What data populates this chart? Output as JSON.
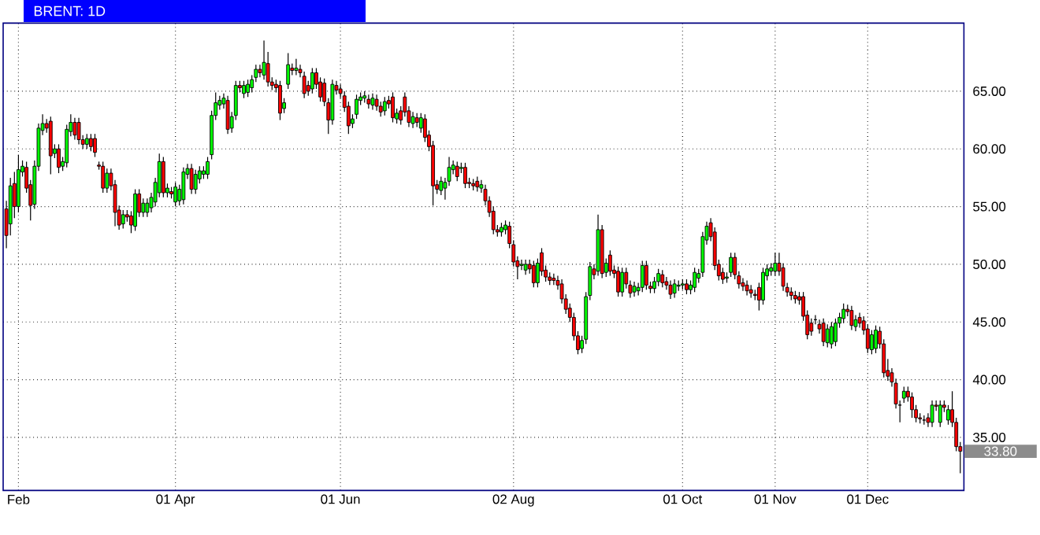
{
  "chart_data": {
    "type": "candlestick",
    "title": "BRENT: 1D",
    "categories": [
      null,
      null,
      null,
      "Feb",
      null,
      null,
      null,
      null,
      null,
      null,
      null,
      null,
      null,
      null,
      null,
      null,
      null,
      null,
      null,
      null,
      null,
      null,
      null,
      null,
      null,
      null,
      null,
      null,
      null,
      null,
      null,
      null,
      null,
      null,
      null,
      null,
      null,
      null,
      null,
      null,
      null,
      null,
      "01 Apr",
      null,
      null,
      null,
      null,
      null,
      null,
      null,
      null,
      null,
      null,
      null,
      null,
      null,
      null,
      null,
      null,
      null,
      null,
      null,
      null,
      null,
      null,
      null,
      null,
      null,
      null,
      null,
      null,
      null,
      null,
      null,
      null,
      null,
      null,
      null,
      null,
      null,
      null,
      null,
      null,
      "01 Jun",
      null,
      null,
      null,
      null,
      null,
      null,
      null,
      null,
      null,
      null,
      null,
      null,
      null,
      null,
      null,
      null,
      null,
      null,
      null,
      null,
      null,
      null,
      null,
      null,
      null,
      null,
      null,
      null,
      null,
      null,
      null,
      null,
      null,
      null,
      null,
      null,
      null,
      null,
      null,
      null,
      null,
      null,
      "02 Aug",
      null,
      null,
      null,
      null,
      null,
      null,
      null,
      null,
      null,
      null,
      null,
      null,
      null,
      null,
      null,
      null,
      null,
      null,
      null,
      null,
      null,
      null,
      null,
      null,
      null,
      null,
      null,
      null,
      null,
      null,
      null,
      null,
      null,
      null,
      null,
      null,
      null,
      null,
      null,
      null,
      null,
      "01 Oct",
      null,
      null,
      null,
      null,
      null,
      null,
      null,
      null,
      null,
      null,
      null,
      null,
      null,
      null,
      null,
      null,
      null,
      null,
      null,
      null,
      null,
      null,
      "01 Nov",
      null,
      null,
      null,
      null,
      null,
      null,
      null,
      null,
      null,
      null,
      null,
      null,
      null,
      null,
      null,
      null,
      null,
      null,
      null,
      null,
      null,
      null,
      "01 Dec",
      null,
      null,
      null,
      null,
      null,
      null,
      null,
      null,
      null,
      null,
      null,
      null,
      null,
      null,
      null,
      null,
      null,
      null,
      null,
      null,
      null,
      null,
      null
    ],
    "ohlc": [
      [
        54.8,
        55.5,
        51.4,
        52.5
      ],
      [
        53.5,
        57.5,
        52.5,
        56.8
      ],
      [
        57,
        58,
        54,
        55
      ],
      [
        55,
        59.5,
        54.5,
        58.2
      ],
      [
        58,
        59,
        57.6,
        58.5
      ],
      [
        58.4,
        58.9,
        56.2,
        56.6
      ],
      [
        56.9,
        57.3,
        53.8,
        55.1
      ],
      [
        55.2,
        59,
        54.8,
        58.5
      ],
      [
        58.5,
        62.2,
        58.1,
        61.8
      ],
      [
        61.6,
        63,
        61.2,
        62.2
      ],
      [
        62.2,
        62.6,
        61.4,
        61.8
      ],
      [
        62.4,
        62.8,
        57.8,
        59.4
      ],
      [
        59.6,
        60.4,
        59.2,
        60
      ],
      [
        60,
        60.4,
        57.9,
        58.4
      ],
      [
        58.5,
        59.3,
        58.1,
        58.9
      ],
      [
        58.8,
        62.1,
        58.4,
        61.7
      ],
      [
        61.5,
        63,
        61.1,
        62.3
      ],
      [
        62.3,
        62.7,
        60.8,
        61.2
      ],
      [
        62.3,
        62.7,
        60.4,
        60.8
      ],
      [
        60.8,
        61.2,
        60,
        60.4
      ],
      [
        60.4,
        61.3,
        60,
        60.9
      ],
      [
        60.9,
        61.3,
        59.8,
        60.2
      ],
      [
        60.9,
        61.3,
        59.3,
        59.7
      ],
      [
        58.6,
        58.9,
        58.2,
        58.5
      ],
      [
        58.5,
        58.9,
        56.2,
        56.6
      ],
      [
        56.6,
        58.3,
        56.2,
        57.9
      ],
      [
        57.9,
        58.3,
        56.4,
        56.8
      ],
      [
        56.9,
        57.3,
        53.3,
        54.5
      ],
      [
        54.7,
        55.1,
        53,
        53.4
      ],
      [
        53.5,
        54.7,
        53.1,
        54.3
      ],
      [
        54.3,
        54.7,
        53.7,
        54.1
      ],
      [
        54.2,
        54.6,
        52.7,
        53.4
      ],
      [
        53.3,
        56.5,
        52.9,
        56.1
      ],
      [
        56.1,
        56.5,
        54.1,
        54.5
      ],
      [
        54.5,
        55.7,
        54.1,
        55.3
      ],
      [
        54.5,
        55.7,
        54.1,
        55.3
      ],
      [
        54.9,
        56.2,
        54.5,
        55.8
      ],
      [
        55.4,
        57.5,
        55,
        57.1
      ],
      [
        56.2,
        59.6,
        55.8,
        58.9
      ],
      [
        58.9,
        59.3,
        55.8,
        56.2
      ],
      [
        56.2,
        57,
        55.8,
        56.6
      ],
      [
        56.3,
        56.7,
        55.7,
        56.1
      ],
      [
        55.4,
        57.1,
        55,
        56.7
      ],
      [
        55.5,
        56.9,
        55.1,
        56.5
      ],
      [
        55.6,
        58.4,
        55.2,
        58
      ],
      [
        57.8,
        58.7,
        57.4,
        58.3
      ],
      [
        58.3,
        58.7,
        56.1,
        56.5
      ],
      [
        56.5,
        58.2,
        56.1,
        57.8
      ],
      [
        57.4,
        58.5,
        57,
        58.1
      ],
      [
        57.8,
        58.5,
        57.4,
        58.1
      ],
      [
        57.8,
        59.3,
        57.4,
        58.9
      ],
      [
        59.5,
        63.3,
        59.1,
        62.9
      ],
      [
        62.9,
        64.9,
        62.5,
        64
      ],
      [
        63.8,
        64.6,
        63.4,
        64.2
      ],
      [
        63.9,
        64.8,
        63.5,
        64.4
      ],
      [
        64.2,
        64.6,
        61.3,
        61.7
      ],
      [
        61.8,
        63.2,
        61.4,
        62.8
      ],
      [
        62.9,
        65.9,
        62.5,
        65.5
      ],
      [
        65.5,
        65.9,
        64.9,
        65.3
      ],
      [
        64.8,
        65.9,
        64.4,
        65.5
      ],
      [
        64.9,
        66,
        64.5,
        65.6
      ],
      [
        65.3,
        66.4,
        64.9,
        66
      ],
      [
        66.2,
        67.3,
        65.8,
        66.9
      ],
      [
        66.9,
        67.3,
        66.2,
        66.6
      ],
      [
        66.4,
        69.4,
        66,
        67.5
      ],
      [
        67.4,
        68.4,
        65.4,
        65.8
      ],
      [
        65.8,
        66.2,
        65.1,
        65.5
      ],
      [
        65.6,
        66,
        64.9,
        65.3
      ],
      [
        65.5,
        65.9,
        62.5,
        63.1
      ],
      [
        63.5,
        64.4,
        63.1,
        64
      ],
      [
        65.6,
        68.3,
        65.2,
        67.3
      ],
      [
        67,
        67.4,
        66.4,
        66.8
      ],
      [
        66.8,
        67.8,
        66.4,
        67
      ],
      [
        66.9,
        67.3,
        66.2,
        66.6
      ],
      [
        66.3,
        66.7,
        64.4,
        64.8
      ],
      [
        65.5,
        65.9,
        64.6,
        65
      ],
      [
        65.2,
        67,
        64.8,
        66.6
      ],
      [
        66.6,
        67,
        65.2,
        65.6
      ],
      [
        65.8,
        66.2,
        64.1,
        64.5
      ],
      [
        65.7,
        66.1,
        63.7,
        64.1
      ],
      [
        64,
        64.4,
        61.3,
        62.5
      ],
      [
        62.5,
        66,
        62.1,
        65.6
      ],
      [
        65.5,
        65.9,
        64.7,
        65.1
      ],
      [
        65.2,
        65.6,
        64.4,
        64.8
      ],
      [
        64.6,
        65,
        63.2,
        63.6
      ],
      [
        63.7,
        64.1,
        61.3,
        62
      ],
      [
        62.2,
        63,
        61.8,
        62.6
      ],
      [
        63,
        64.7,
        62.6,
        64.3
      ],
      [
        64.2,
        64.9,
        63.8,
        64.5
      ],
      [
        64.4,
        65,
        64,
        64.6
      ],
      [
        64.3,
        64.7,
        63.5,
        63.9
      ],
      [
        63.8,
        64.8,
        63.4,
        64.4
      ],
      [
        64.3,
        64.7,
        63.3,
        63.7
      ],
      [
        63.7,
        64.1,
        62.8,
        63.2
      ],
      [
        63.3,
        64.5,
        62.9,
        64.1
      ],
      [
        64.2,
        64.6,
        63.5,
        63.9
      ],
      [
        64.5,
        64.9,
        62.3,
        62.7
      ],
      [
        62.6,
        63.5,
        62.2,
        63.1
      ],
      [
        63.3,
        63.7,
        62.1,
        62.5
      ],
      [
        64.5,
        64.9,
        62.8,
        63.2
      ],
      [
        63.3,
        63.7,
        61.9,
        62.3
      ],
      [
        62.2,
        63.2,
        61.8,
        62.8
      ],
      [
        62.7,
        63.1,
        61.9,
        62.3
      ],
      [
        61.8,
        63.1,
        61.4,
        62.7
      ],
      [
        62.6,
        63,
        60.6,
        61
      ],
      [
        61.2,
        61.6,
        59.8,
        60.2
      ],
      [
        60.3,
        60.7,
        55.1,
        56.8
      ],
      [
        56.9,
        57.3,
        56.1,
        56.5
      ],
      [
        56.4,
        57.6,
        56,
        57.2
      ],
      [
        56.6,
        57.5,
        55.6,
        57.1
      ],
      [
        57.2,
        59.3,
        56.8,
        58.4
      ],
      [
        58.2,
        59,
        57.8,
        58.6
      ],
      [
        58.5,
        58.9,
        57.2,
        57.6
      ],
      [
        58.3,
        58.8,
        57.9,
        58.4
      ],
      [
        58.4,
        58.8,
        56.6,
        57
      ],
      [
        57.1,
        57.5,
        56.6,
        57
      ],
      [
        57,
        57.4,
        56.4,
        56.8
      ],
      [
        57.2,
        57.6,
        56.3,
        56.7
      ],
      [
        56.6,
        57.3,
        56.2,
        56.9
      ],
      [
        56.5,
        56.9,
        55.1,
        55.5
      ],
      [
        55.5,
        55.9,
        54.1,
        54.5
      ],
      [
        54.6,
        55,
        52.6,
        53
      ],
      [
        53,
        53.4,
        52.4,
        52.8
      ],
      [
        52.8,
        53.6,
        52.4,
        53.2
      ],
      [
        53,
        53.8,
        52.6,
        53.4
      ],
      [
        53.3,
        53.7,
        51.4,
        51.8
      ],
      [
        51.7,
        52.1,
        49.8,
        50.2
      ],
      [
        50.3,
        50.7,
        48.7,
        49.8
      ],
      [
        49.9,
        50.4,
        49.5,
        50
      ],
      [
        49.5,
        50.4,
        49.1,
        50
      ],
      [
        50,
        50.4,
        49.2,
        49.6
      ],
      [
        49.9,
        50.3,
        48,
        48.4
      ],
      [
        48.4,
        50.5,
        48,
        50.1
      ],
      [
        51,
        51.4,
        49,
        49.4
      ],
      [
        49.5,
        49.9,
        48.5,
        48.9
      ],
      [
        48.9,
        49.3,
        48.2,
        48.6
      ],
      [
        48.8,
        49.2,
        48.2,
        48.6
      ],
      [
        48.6,
        49,
        47.8,
        48.2
      ],
      [
        48.3,
        48.7,
        46.6,
        47
      ],
      [
        47,
        47.4,
        45.7,
        46.1
      ],
      [
        46.2,
        46.6,
        45,
        45.4
      ],
      [
        45.4,
        45.8,
        43.4,
        43.8
      ],
      [
        43.8,
        44.2,
        42.2,
        42.6
      ],
      [
        42.7,
        43.8,
        42.3,
        43.4
      ],
      [
        43.5,
        47.6,
        43.1,
        47.2
      ],
      [
        47.3,
        50.2,
        46.9,
        49.8
      ],
      [
        49.6,
        50,
        48.7,
        49.1
      ],
      [
        49.4,
        54.3,
        49,
        53
      ],
      [
        53,
        53.4,
        48.8,
        49.2
      ],
      [
        49.3,
        50.5,
        48.9,
        50.1
      ],
      [
        50.8,
        51.2,
        49,
        49.4
      ],
      [
        49.5,
        49.9,
        48.8,
        49.2
      ],
      [
        49.4,
        49.8,
        47.2,
        47.6
      ],
      [
        47.6,
        49.7,
        47.2,
        49.3
      ],
      [
        49.3,
        49.7,
        47.9,
        48.3
      ],
      [
        48.2,
        48.6,
        47.1,
        47.5
      ],
      [
        47.6,
        48.5,
        47.2,
        48.1
      ],
      [
        47.7,
        48.4,
        47.3,
        48
      ],
      [
        48,
        50.3,
        47.6,
        49.9
      ],
      [
        49.9,
        50.3,
        47.8,
        48.2
      ],
      [
        48.1,
        48.5,
        47.5,
        47.9
      ],
      [
        47.9,
        48.9,
        47.5,
        48.5
      ],
      [
        48.5,
        49.6,
        48.1,
        49.2
      ],
      [
        49.1,
        49.5,
        48,
        48.4
      ],
      [
        48.5,
        48.9,
        47.8,
        48.2
      ],
      [
        48.2,
        48.6,
        47,
        47.4
      ],
      [
        47.5,
        48.7,
        47.1,
        48.3
      ],
      [
        48.1,
        48.6,
        47.7,
        48.2
      ],
      [
        48.2,
        48.7,
        47.8,
        48.3
      ],
      [
        48.3,
        48.7,
        47.4,
        47.8
      ],
      [
        47.8,
        48.6,
        47.4,
        48.2
      ],
      [
        48,
        49.7,
        47.6,
        49.3
      ],
      [
        48.8,
        49.6,
        48.4,
        49.2
      ],
      [
        49.3,
        52.8,
        48.9,
        52.4
      ],
      [
        52.1,
        53.7,
        51.7,
        53.3
      ],
      [
        53.6,
        54,
        52,
        52.4
      ],
      [
        52.8,
        53.2,
        49.5,
        49.9
      ],
      [
        50,
        50.4,
        48.6,
        49
      ],
      [
        49.3,
        49.7,
        48.3,
        48.7
      ],
      [
        48.8,
        49.3,
        48.4,
        48.9
      ],
      [
        49.3,
        51,
        48.9,
        50.6
      ],
      [
        50.6,
        51,
        48.7,
        49.1
      ],
      [
        49,
        49.4,
        47.9,
        48.3
      ],
      [
        48.4,
        48.8,
        47.7,
        48.1
      ],
      [
        48.2,
        48.6,
        47.3,
        47.7
      ],
      [
        47.8,
        48.2,
        47.1,
        47.5
      ],
      [
        47.4,
        47.8,
        46.9,
        47.3
      ],
      [
        48,
        48.4,
        46,
        46.9
      ],
      [
        46.9,
        49.7,
        46.5,
        49.3
      ],
      [
        49,
        50,
        48.6,
        49.6
      ],
      [
        49.4,
        50.1,
        49,
        49.7
      ],
      [
        49.4,
        51,
        49,
        50.1
      ],
      [
        50.1,
        51,
        49,
        49.4
      ],
      [
        49.7,
        50.1,
        47.7,
        48.1
      ],
      [
        48,
        48.4,
        47.2,
        47.6
      ],
      [
        47.6,
        48,
        46.9,
        47.3
      ],
      [
        47.3,
        47.7,
        46.6,
        47
      ],
      [
        47.2,
        47.6,
        46.5,
        46.9
      ],
      [
        47.2,
        47.6,
        45.1,
        45.5
      ],
      [
        45.6,
        46,
        43.5,
        43.9
      ],
      [
        44.9,
        45.3,
        43.8,
        44.2
      ],
      [
        45.2,
        45.6,
        44.8,
        45.2
      ],
      [
        44.8,
        45.2,
        44,
        44.4
      ],
      [
        44.9,
        45.3,
        42.9,
        43.3
      ],
      [
        43.2,
        44.8,
        42.8,
        44.4
      ],
      [
        43.1,
        45,
        42.7,
        44.6
      ],
      [
        43.3,
        45.3,
        42.9,
        44.9
      ],
      [
        44.9,
        45.8,
        44.5,
        45.4
      ],
      [
        45.3,
        46.6,
        44.9,
        46.1
      ],
      [
        46.1,
        46.5,
        45.5,
        45.9
      ],
      [
        46,
        46.4,
        44.3,
        44.7
      ],
      [
        44.6,
        45.6,
        44.2,
        45.2
      ],
      [
        45.4,
        45.8,
        44.5,
        44.9
      ],
      [
        45.1,
        45.5,
        43.9,
        44.3
      ],
      [
        44.4,
        44.8,
        42.3,
        42.7
      ],
      [
        42.6,
        44.3,
        42.2,
        43.9
      ],
      [
        42.7,
        44.7,
        42.3,
        44.3
      ],
      [
        44.2,
        44.6,
        42.7,
        43.1
      ],
      [
        43.1,
        43.5,
        40.2,
        40.6
      ],
      [
        40.8,
        41.8,
        39.9,
        40.3
      ],
      [
        40.6,
        41,
        39.4,
        39.8
      ],
      [
        39.7,
        40.1,
        37.5,
        37.9
      ],
      [
        37.8,
        38.2,
        36.3,
        37.8
      ],
      [
        38.4,
        39.4,
        38,
        39
      ],
      [
        39,
        39.4,
        38.1,
        38.5
      ],
      [
        38.5,
        38.9,
        36.7,
        37.4
      ],
      [
        37.4,
        37.8,
        36.3,
        36.7
      ],
      [
        36.7,
        37.1,
        36.2,
        36.6
      ],
      [
        36.5,
        36.9,
        36.1,
        36.5
      ],
      [
        36.7,
        37.1,
        35.9,
        36.3
      ],
      [
        36.3,
        38.2,
        35.9,
        37.8
      ],
      [
        37.8,
        38.2,
        37.3,
        37.7
      ],
      [
        36.3,
        38.2,
        35.9,
        37.8
      ],
      [
        37.8,
        38.2,
        37.2,
        37.6
      ],
      [
        36.5,
        37.8,
        36.1,
        37.4
      ],
      [
        37.4,
        39,
        35.9,
        36.3
      ],
      [
        36.3,
        36.7,
        33.8,
        34.2
      ],
      [
        34.2,
        34.6,
        31.9,
        33.8
      ]
    ],
    "ylim": [
      30.4,
      70.9
    ],
    "yticks": [
      {
        "value": 35,
        "label": "35.00"
      },
      {
        "value": 40,
        "label": "40.00"
      },
      {
        "value": 45,
        "label": "45.00"
      },
      {
        "value": 50,
        "label": "50.00"
      },
      {
        "value": 55,
        "label": "55.00"
      },
      {
        "value": 60,
        "label": "60.00"
      },
      {
        "value": 65,
        "label": "65.00"
      }
    ],
    "grid": true,
    "annotations": [
      "33.80"
    ]
  }
}
